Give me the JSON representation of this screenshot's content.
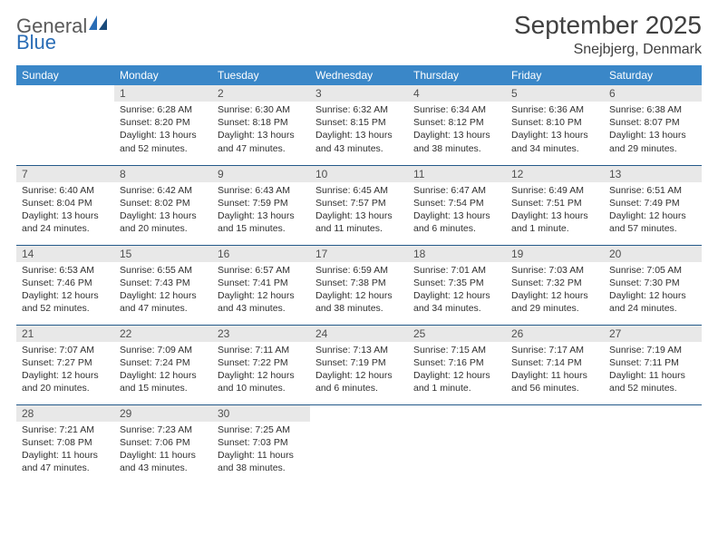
{
  "logo": {
    "text1": "General",
    "text2": "Blue"
  },
  "title": "September 2025",
  "location": "Snejbjerg, Denmark",
  "colors": {
    "header_bg": "#3a87c8",
    "header_fg": "#ffffff",
    "daynum_bg": "#e8e8e8",
    "border": "#245a8a"
  },
  "weekdays": [
    "Sunday",
    "Monday",
    "Tuesday",
    "Wednesday",
    "Thursday",
    "Friday",
    "Saturday"
  ],
  "weeks": [
    [
      {
        "n": "",
        "sr": "",
        "ss": "",
        "dl": ""
      },
      {
        "n": "1",
        "sr": "6:28 AM",
        "ss": "8:20 PM",
        "dl": "13 hours and 52 minutes."
      },
      {
        "n": "2",
        "sr": "6:30 AM",
        "ss": "8:18 PM",
        "dl": "13 hours and 47 minutes."
      },
      {
        "n": "3",
        "sr": "6:32 AM",
        "ss": "8:15 PM",
        "dl": "13 hours and 43 minutes."
      },
      {
        "n": "4",
        "sr": "6:34 AM",
        "ss": "8:12 PM",
        "dl": "13 hours and 38 minutes."
      },
      {
        "n": "5",
        "sr": "6:36 AM",
        "ss": "8:10 PM",
        "dl": "13 hours and 34 minutes."
      },
      {
        "n": "6",
        "sr": "6:38 AM",
        "ss": "8:07 PM",
        "dl": "13 hours and 29 minutes."
      }
    ],
    [
      {
        "n": "7",
        "sr": "6:40 AM",
        "ss": "8:04 PM",
        "dl": "13 hours and 24 minutes."
      },
      {
        "n": "8",
        "sr": "6:42 AM",
        "ss": "8:02 PM",
        "dl": "13 hours and 20 minutes."
      },
      {
        "n": "9",
        "sr": "6:43 AM",
        "ss": "7:59 PM",
        "dl": "13 hours and 15 minutes."
      },
      {
        "n": "10",
        "sr": "6:45 AM",
        "ss": "7:57 PM",
        "dl": "13 hours and 11 minutes."
      },
      {
        "n": "11",
        "sr": "6:47 AM",
        "ss": "7:54 PM",
        "dl": "13 hours and 6 minutes."
      },
      {
        "n": "12",
        "sr": "6:49 AM",
        "ss": "7:51 PM",
        "dl": "13 hours and 1 minute."
      },
      {
        "n": "13",
        "sr": "6:51 AM",
        "ss": "7:49 PM",
        "dl": "12 hours and 57 minutes."
      }
    ],
    [
      {
        "n": "14",
        "sr": "6:53 AM",
        "ss": "7:46 PM",
        "dl": "12 hours and 52 minutes."
      },
      {
        "n": "15",
        "sr": "6:55 AM",
        "ss": "7:43 PM",
        "dl": "12 hours and 47 minutes."
      },
      {
        "n": "16",
        "sr": "6:57 AM",
        "ss": "7:41 PM",
        "dl": "12 hours and 43 minutes."
      },
      {
        "n": "17",
        "sr": "6:59 AM",
        "ss": "7:38 PM",
        "dl": "12 hours and 38 minutes."
      },
      {
        "n": "18",
        "sr": "7:01 AM",
        "ss": "7:35 PM",
        "dl": "12 hours and 34 minutes."
      },
      {
        "n": "19",
        "sr": "7:03 AM",
        "ss": "7:32 PM",
        "dl": "12 hours and 29 minutes."
      },
      {
        "n": "20",
        "sr": "7:05 AM",
        "ss": "7:30 PM",
        "dl": "12 hours and 24 minutes."
      }
    ],
    [
      {
        "n": "21",
        "sr": "7:07 AM",
        "ss": "7:27 PM",
        "dl": "12 hours and 20 minutes."
      },
      {
        "n": "22",
        "sr": "7:09 AM",
        "ss": "7:24 PM",
        "dl": "12 hours and 15 minutes."
      },
      {
        "n": "23",
        "sr": "7:11 AM",
        "ss": "7:22 PM",
        "dl": "12 hours and 10 minutes."
      },
      {
        "n": "24",
        "sr": "7:13 AM",
        "ss": "7:19 PM",
        "dl": "12 hours and 6 minutes."
      },
      {
        "n": "25",
        "sr": "7:15 AM",
        "ss": "7:16 PM",
        "dl": "12 hours and 1 minute."
      },
      {
        "n": "26",
        "sr": "7:17 AM",
        "ss": "7:14 PM",
        "dl": "11 hours and 56 minutes."
      },
      {
        "n": "27",
        "sr": "7:19 AM",
        "ss": "7:11 PM",
        "dl": "11 hours and 52 minutes."
      }
    ],
    [
      {
        "n": "28",
        "sr": "7:21 AM",
        "ss": "7:08 PM",
        "dl": "11 hours and 47 minutes."
      },
      {
        "n": "29",
        "sr": "7:23 AM",
        "ss": "7:06 PM",
        "dl": "11 hours and 43 minutes."
      },
      {
        "n": "30",
        "sr": "7:25 AM",
        "ss": "7:03 PM",
        "dl": "11 hours and 38 minutes."
      },
      {
        "n": "",
        "sr": "",
        "ss": "",
        "dl": ""
      },
      {
        "n": "",
        "sr": "",
        "ss": "",
        "dl": ""
      },
      {
        "n": "",
        "sr": "",
        "ss": "",
        "dl": ""
      },
      {
        "n": "",
        "sr": "",
        "ss": "",
        "dl": ""
      }
    ]
  ],
  "labels": {
    "sunrise": "Sunrise:",
    "sunset": "Sunset:",
    "daylight": "Daylight:"
  }
}
